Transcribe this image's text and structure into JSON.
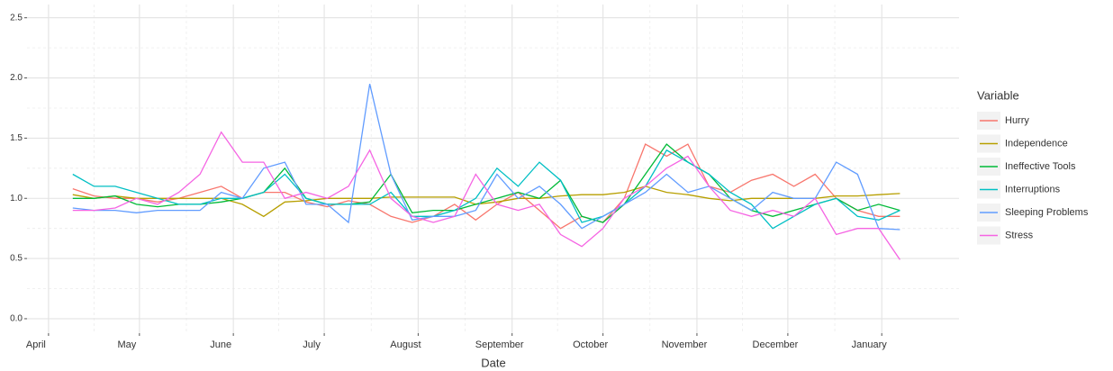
{
  "chart_data": {
    "type": "line",
    "x_title": "Date",
    "y_title": null,
    "legend_title": "Variable",
    "legend": "right",
    "grid": true,
    "x": [
      8,
      15,
      22,
      29,
      36,
      43,
      50,
      57,
      64,
      71,
      78,
      85,
      92,
      99,
      106,
      113,
      120,
      127,
      134,
      141,
      148,
      155,
      162,
      169,
      176,
      183,
      190,
      197,
      204,
      211,
      218,
      225,
      232,
      239,
      246,
      253,
      260,
      267,
      274,
      281
    ],
    "xlim": [
      -7.1,
      300.5
    ],
    "xticks": [
      {
        "value": 0,
        "label": "April"
      },
      {
        "value": 30,
        "label": "May"
      },
      {
        "value": 61,
        "label": "June"
      },
      {
        "value": 91,
        "label": "July"
      },
      {
        "value": 122,
        "label": "August"
      },
      {
        "value": 153,
        "label": "September"
      },
      {
        "value": 183,
        "label": "October"
      },
      {
        "value": 214,
        "label": "November"
      },
      {
        "value": 244,
        "label": "December"
      },
      {
        "value": 275,
        "label": "January"
      }
    ],
    "ylim": [
      -0.12,
      2.61
    ],
    "yticks": [
      {
        "value": 0,
        "label": "0.0"
      },
      {
        "value": 0.5,
        "label": "0.5"
      },
      {
        "value": 1,
        "label": "1.0"
      },
      {
        "value": 1.5,
        "label": "1.5"
      },
      {
        "value": 2,
        "label": "2.0"
      },
      {
        "value": 2.5,
        "label": "2.5"
      }
    ],
    "series": [
      {
        "name": "Hurry",
        "color": "#F8766D",
        "values": [
          1.08,
          1.02,
          1.0,
          1.0,
          0.97,
          1.0,
          1.05,
          1.1,
          1.0,
          1.05,
          1.05,
          0.97,
          0.93,
          0.98,
          0.95,
          0.85,
          0.8,
          0.85,
          0.95,
          0.82,
          0.95,
          1.05,
          0.9,
          0.75,
          0.85,
          0.8,
          1.0,
          1.45,
          1.35,
          1.45,
          1.1,
          1.05,
          1.15,
          1.2,
          1.1,
          1.2,
          1.0,
          0.9,
          0.85,
          0.85
        ]
      },
      {
        "name": "Independence",
        "color": "#B79F00",
        "values": [
          1.03,
          1.0,
          1.02,
          1.0,
          1.0,
          1.0,
          1.0,
          1.0,
          0.95,
          0.85,
          0.97,
          0.98,
          1.0,
          1.0,
          1.0,
          1.01,
          1.01,
          1.01,
          1.01,
          0.95,
          0.97,
          1.0,
          1.0,
          1.02,
          1.03,
          1.03,
          1.05,
          1.1,
          1.05,
          1.03,
          1.0,
          0.98,
          1.0,
          1.0,
          1.0,
          1.0,
          1.02,
          1.02,
          1.03,
          1.04
        ]
      },
      {
        "name": "Ineffective Tools",
        "color": "#00BA38",
        "values": [
          1.0,
          1.0,
          1.02,
          0.95,
          0.93,
          0.95,
          0.95,
          0.97,
          1.0,
          1.05,
          1.25,
          1.0,
          0.95,
          0.95,
          0.97,
          1.2,
          0.88,
          0.9,
          0.9,
          0.95,
          1.0,
          1.05,
          1.0,
          1.15,
          0.85,
          0.8,
          0.95,
          1.2,
          1.45,
          1.3,
          1.2,
          1.0,
          0.9,
          0.85,
          0.9,
          0.95,
          1.0,
          0.9,
          0.95,
          0.9
        ]
      },
      {
        "name": "Interruptions",
        "color": "#00BFC4",
        "values": [
          1.2,
          1.1,
          1.1,
          1.05,
          1.0,
          0.95,
          0.95,
          1.0,
          1.0,
          1.05,
          1.2,
          1.0,
          0.95,
          0.95,
          0.95,
          1.05,
          0.85,
          0.85,
          0.9,
          1.0,
          1.25,
          1.1,
          1.3,
          1.15,
          0.8,
          0.85,
          0.95,
          1.1,
          1.4,
          1.3,
          1.2,
          1.05,
          0.95,
          0.75,
          0.85,
          0.95,
          1.0,
          0.85,
          0.82,
          0.9
        ]
      },
      {
        "name": "Sleeping Problems",
        "color": "#619CFF",
        "values": [
          0.92,
          0.9,
          0.9,
          0.88,
          0.9,
          0.9,
          0.9,
          1.05,
          1.0,
          1.25,
          1.3,
          0.95,
          0.95,
          0.8,
          1.95,
          1.2,
          0.82,
          0.85,
          0.85,
          0.9,
          1.2,
          1.0,
          1.1,
          0.95,
          0.75,
          0.85,
          0.95,
          1.05,
          1.2,
          1.05,
          1.1,
          1.0,
          0.9,
          1.05,
          1.0,
          1.0,
          1.3,
          1.2,
          0.75,
          0.74
        ]
      },
      {
        "name": "Stress",
        "color": "#F564E3",
        "values": [
          0.9,
          0.9,
          0.92,
          1.0,
          0.95,
          1.05,
          1.2,
          1.55,
          1.3,
          1.3,
          1.0,
          1.05,
          1.0,
          1.1,
          1.4,
          1.0,
          0.85,
          0.8,
          0.85,
          1.2,
          0.95,
          0.9,
          0.95,
          0.7,
          0.6,
          0.75,
          1.0,
          1.1,
          1.25,
          1.35,
          1.1,
          0.9,
          0.85,
          0.9,
          0.85,
          1.0,
          0.7,
          0.75,
          0.75,
          0.49
        ]
      }
    ]
  }
}
